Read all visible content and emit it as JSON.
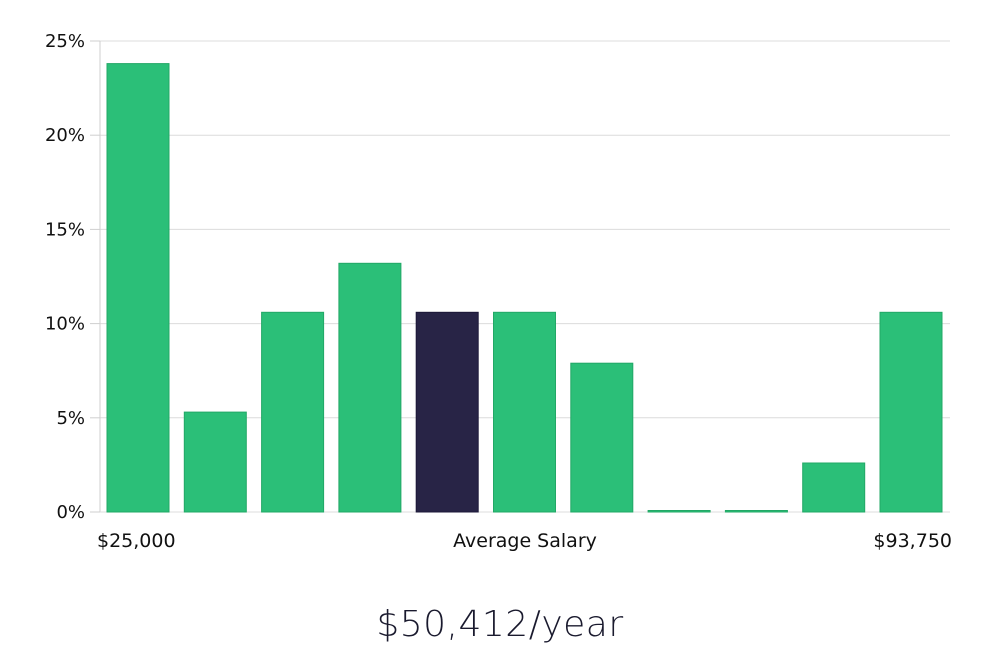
{
  "chart_data": {
    "type": "bar",
    "title": "",
    "xlabel": "Average Salary",
    "ylabel": "",
    "x_start_label": "$25,000",
    "x_end_label": "$93,750",
    "ylim": [
      0,
      25
    ],
    "y_ticks": [
      0,
      5,
      10,
      15,
      20,
      25
    ],
    "y_tick_labels": [
      "0%",
      "5%",
      "10%",
      "15%",
      "20%",
      "25%"
    ],
    "values": [
      23.8,
      5.3,
      10.6,
      13.2,
      10.6,
      10.6,
      7.9,
      0,
      0,
      2.6,
      10.6
    ],
    "highlight_index": 4,
    "grid": true
  },
  "colors": {
    "bar": "#2bbf78",
    "bar_edge": "#22a866",
    "highlight": "#282446",
    "highlight_edge": "#1c1838"
  },
  "summary": {
    "salary": "$50,412/year"
  }
}
